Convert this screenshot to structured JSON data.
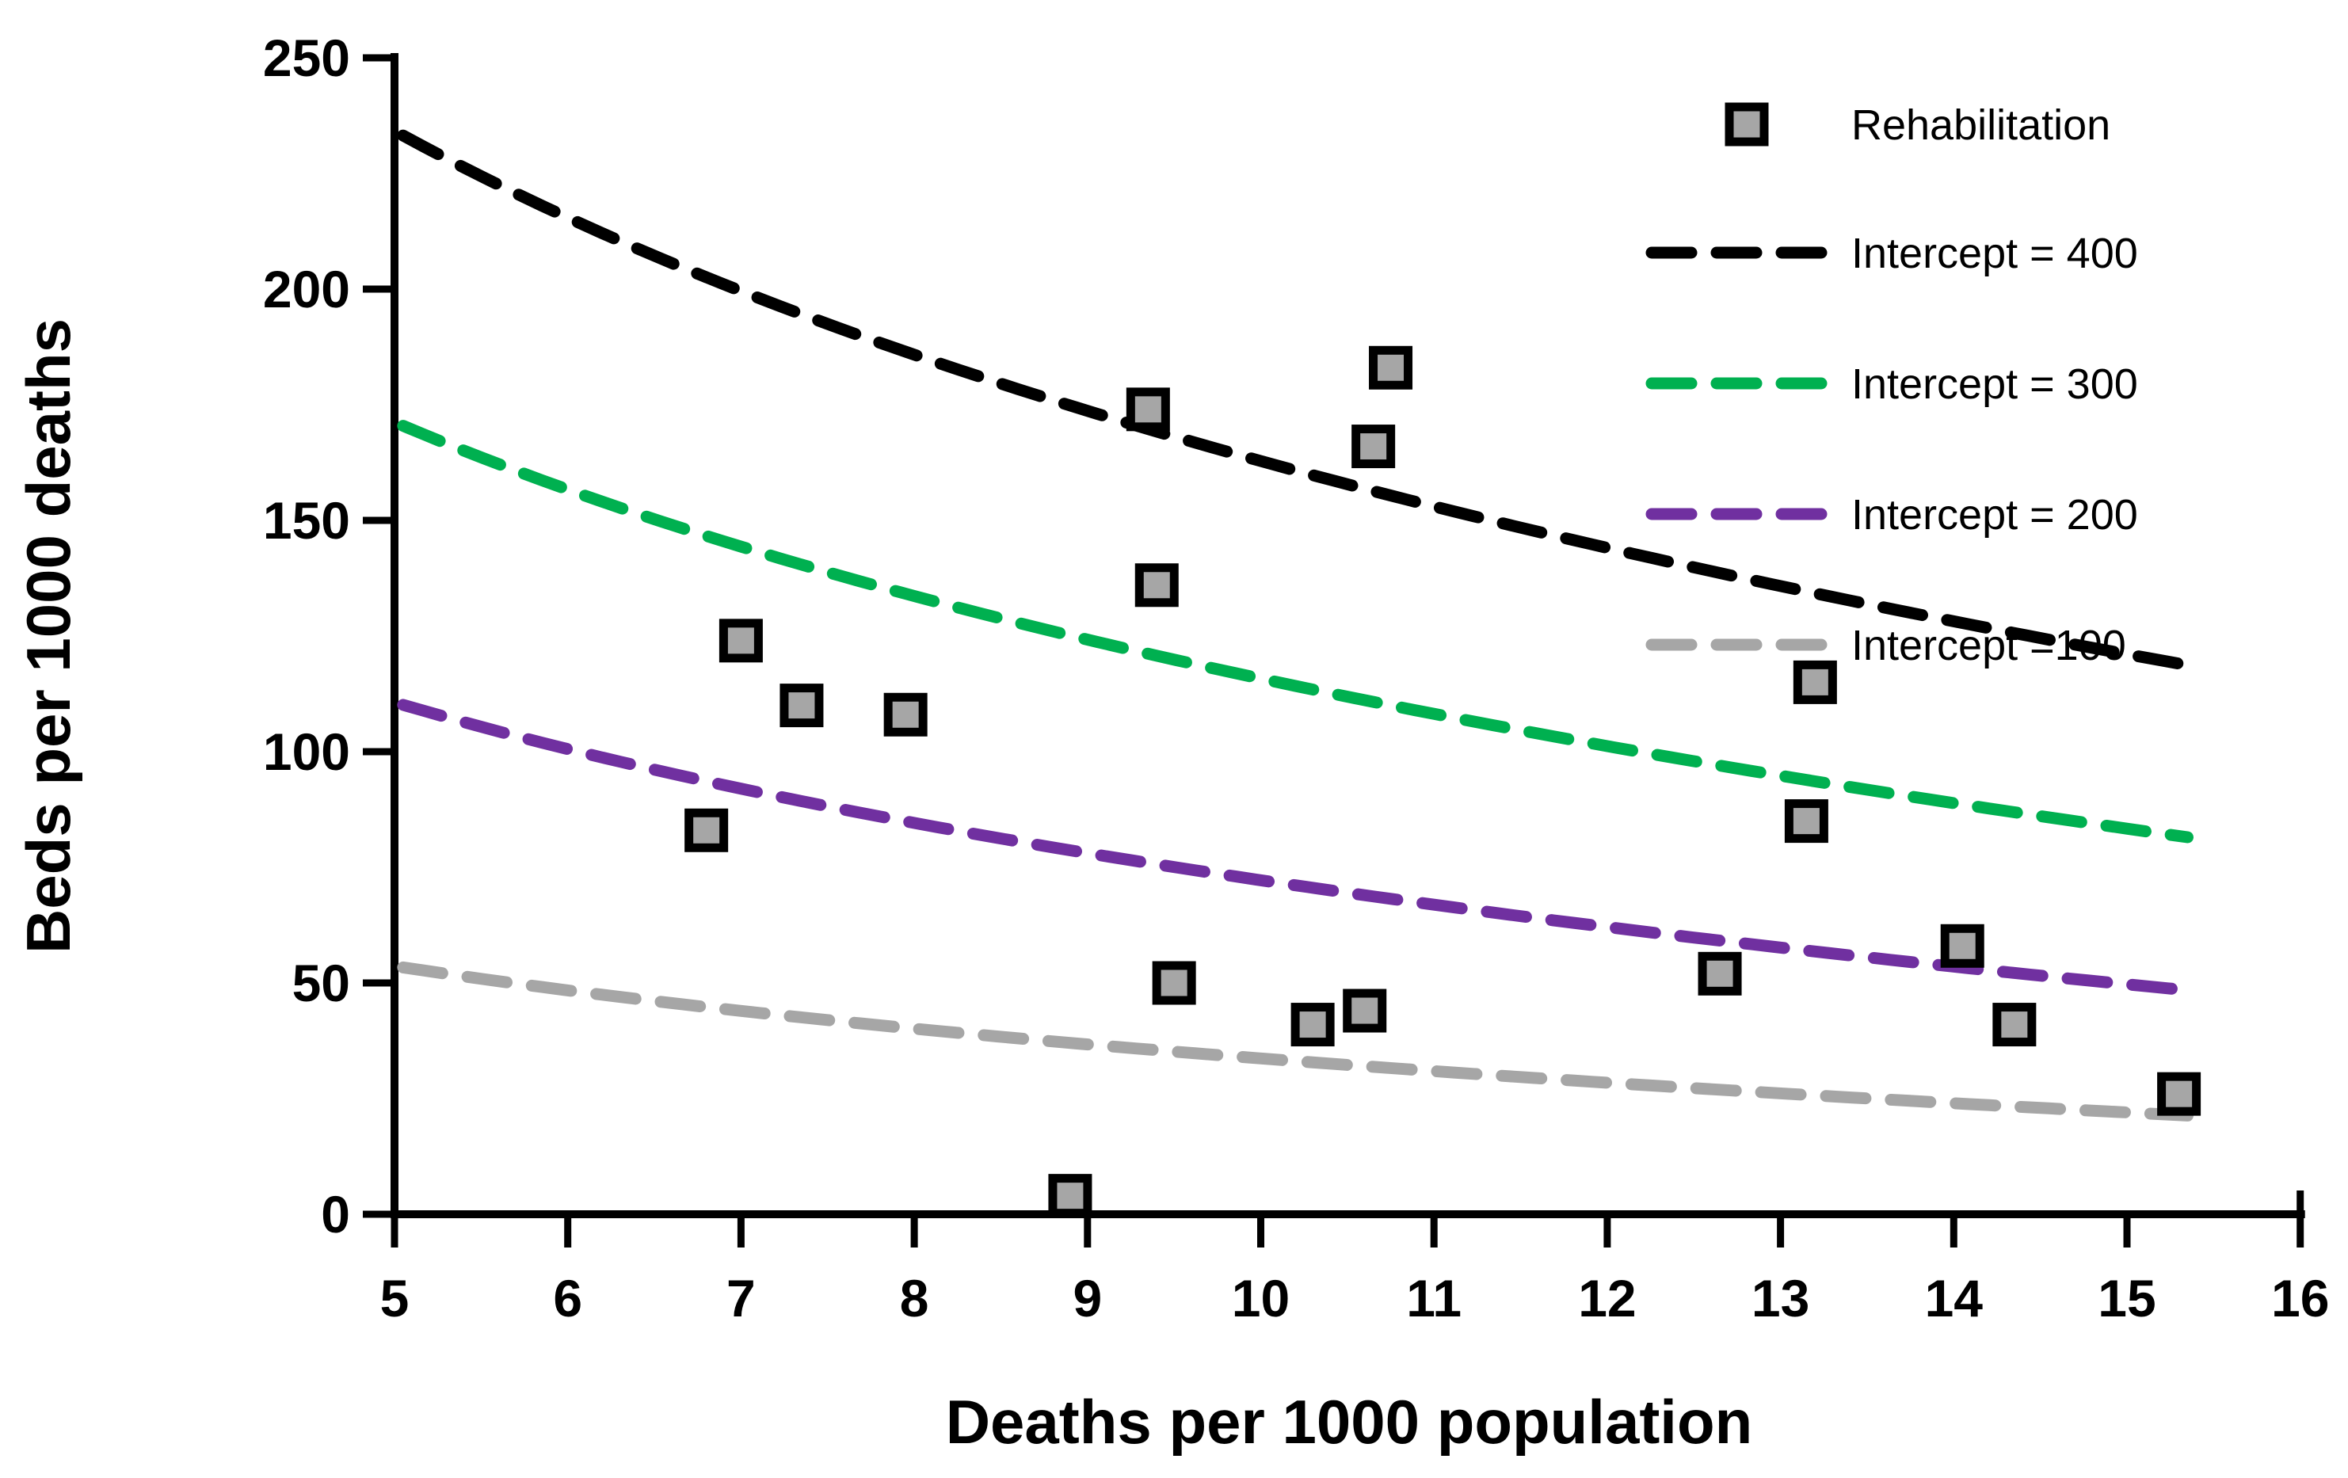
{
  "chart_data": {
    "type": "scatter",
    "title": "",
    "xlabel": "Deaths per 1000 population",
    "ylabel": "Beds per 1000 deaths",
    "xlim": [
      5,
      16
    ],
    "ylim": [
      0,
      250
    ],
    "x_ticks": [
      5,
      6,
      7,
      8,
      9,
      10,
      11,
      12,
      13,
      14,
      15,
      16
    ],
    "y_ticks": [
      0,
      50,
      100,
      150,
      200,
      250
    ],
    "grid": false,
    "legend_position": "top-right-inside",
    "series": [
      {
        "name": "Rehabilitation",
        "type": "scatter",
        "marker": "square",
        "marker_fill": "#A6A6A6",
        "marker_edge": "#000000",
        "points": [
          [
            6.8,
            83
          ],
          [
            7.0,
            124
          ],
          [
            7.35,
            110
          ],
          [
            7.95,
            108
          ],
          [
            8.9,
            4
          ],
          [
            9.35,
            174
          ],
          [
            9.4,
            136
          ],
          [
            9.5,
            50
          ],
          [
            10.3,
            41
          ],
          [
            10.6,
            44
          ],
          [
            10.65,
            166
          ],
          [
            10.75,
            183
          ],
          [
            12.65,
            52
          ],
          [
            13.15,
            85
          ],
          [
            13.2,
            115
          ],
          [
            14.05,
            58
          ],
          [
            14.35,
            41
          ],
          [
            15.3,
            26
          ]
        ]
      }
    ],
    "curves": [
      {
        "name": "Intercept = 400",
        "color": "#000000",
        "model": "y = intercept - slope * ln(x)",
        "intercept": 400,
        "slope": 103.0,
        "x_start": 5.05,
        "x_end": 15.35,
        "style": "dashed"
      },
      {
        "name": "Intercept = 300",
        "color": "#00B050",
        "model": "y = intercept - slope * ln(x)",
        "intercept": 300,
        "slope": 80.0,
        "x_start": 5.05,
        "x_end": 15.35,
        "style": "dashed"
      },
      {
        "name": "Intercept = 200",
        "color": "#7030A0",
        "model": "y = intercept - slope * ln(x)",
        "intercept": 200,
        "slope": 55.5,
        "x_start": 5.05,
        "x_end": 15.35,
        "style": "dashed"
      },
      {
        "name": "Intercept =100",
        "color": "#A6A6A6",
        "model": "y = intercept - slope * ln(x)",
        "intercept": 100,
        "slope": 28.8,
        "x_start": 5.05,
        "x_end": 15.35,
        "style": "dashed"
      }
    ],
    "legend_items": [
      "Rehabilitation",
      "Intercept = 400",
      "Intercept = 300",
      "Intercept = 200",
      "Intercept =100"
    ]
  },
  "colors": {
    "background": "#FFFFFF",
    "axis": "#000000",
    "text": "#000000",
    "scatter_fill": "#A6A6A6",
    "curve_black": "#000000",
    "curve_green": "#00B050",
    "curve_purple": "#7030A0",
    "curve_gray": "#A6A6A6"
  }
}
